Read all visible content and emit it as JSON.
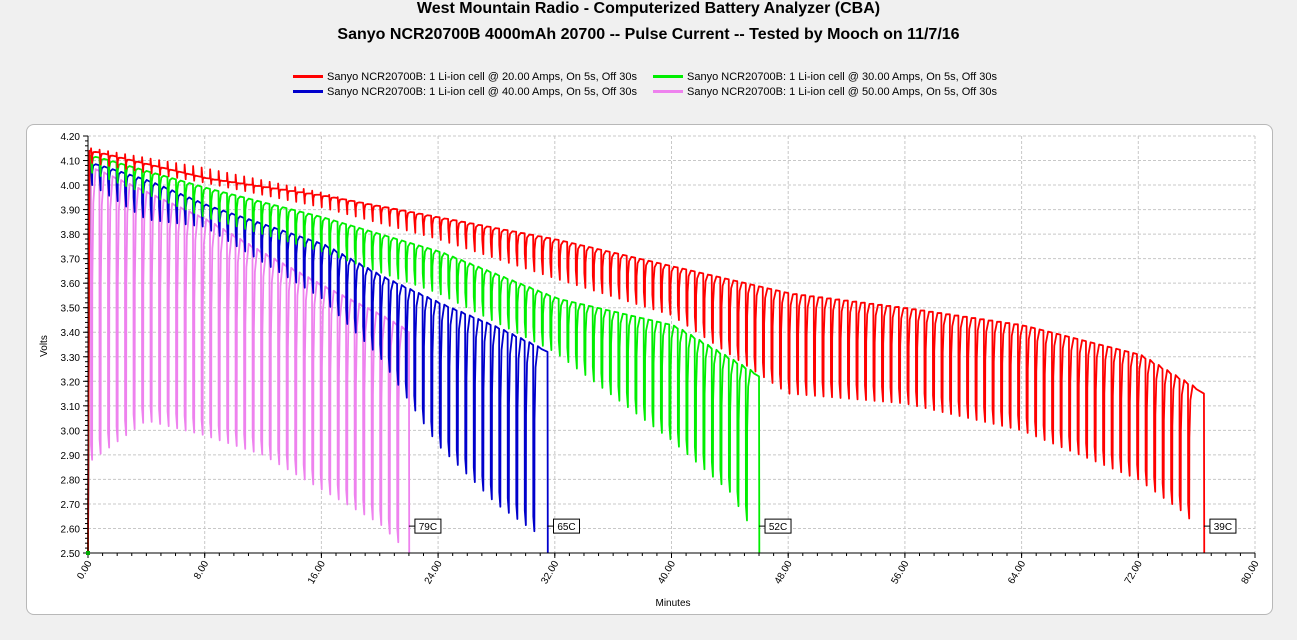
{
  "chart_data": {
    "type": "line",
    "title": "West Mountain Radio - Computerized Battery Analyzer (CBA)",
    "subtitle": "Sanyo NCR20700B 4000mAh 20700 -- Pulse Current -- Tested by Mooch on 11/7/16",
    "xlabel": "Minutes",
    "ylabel": "Volts",
    "xlim": [
      0,
      80
    ],
    "ylim": [
      2.5,
      4.2
    ],
    "x_ticks": [
      "0.00",
      "8.00",
      "16.00",
      "24.00",
      "32.00",
      "40.00",
      "48.00",
      "56.00",
      "64.00",
      "72.00",
      "80.00"
    ],
    "y_ticks": [
      "2.50",
      "2.60",
      "2.70",
      "2.80",
      "2.90",
      "3.00",
      "3.10",
      "3.20",
      "3.30",
      "3.40",
      "3.50",
      "3.60",
      "3.70",
      "3.80",
      "3.90",
      "4.00",
      "4.10",
      "4.20"
    ],
    "grid": true,
    "legend_position": "top",
    "series": [
      {
        "name": "Sanyo NCR20700B: 1 Li-ion cell @ 20.00 Amps, On 5s, Off 30s",
        "color": "#ff0000",
        "end_label": "39C",
        "pulse_period_min": 0.583,
        "rest_envelope": [
          [
            0.3,
            4.14
          ],
          [
            8,
            4.03
          ],
          [
            16,
            3.96
          ],
          [
            24,
            3.87
          ],
          [
            32,
            3.78
          ],
          [
            40,
            3.67
          ],
          [
            48,
            3.56
          ],
          [
            56,
            3.5
          ],
          [
            64,
            3.43
          ],
          [
            72,
            3.31
          ],
          [
            76.5,
            3.15
          ]
        ],
        "load_envelope": [
          [
            0.3,
            4.09
          ],
          [
            8,
            4.01
          ],
          [
            16,
            3.91
          ],
          [
            24,
            3.78
          ],
          [
            32,
            3.62
          ],
          [
            40,
            3.47
          ],
          [
            48,
            3.15
          ],
          [
            56,
            3.11
          ],
          [
            64,
            3.0
          ],
          [
            72,
            2.8
          ],
          [
            75,
            2.67
          ],
          [
            76.5,
            2.58
          ]
        ],
        "end_x": 76.5
      },
      {
        "name": "Sanyo NCR20700B: 1 Li-ion cell @ 30.00 Amps, On 5s, Off 30s",
        "color": "#00ee00",
        "end_label": "52C",
        "pulse_period_min": 0.583,
        "rest_envelope": [
          [
            0.3,
            4.12
          ],
          [
            8,
            3.99
          ],
          [
            16,
            3.87
          ],
          [
            24,
            3.73
          ],
          [
            32,
            3.54
          ],
          [
            40,
            3.43
          ],
          [
            44,
            3.29
          ],
          [
            46,
            3.22
          ]
        ],
        "load_envelope": [
          [
            0.3,
            4.05
          ],
          [
            8,
            3.87
          ],
          [
            16,
            3.73
          ],
          [
            24,
            3.56
          ],
          [
            32,
            3.32
          ],
          [
            40,
            2.96
          ],
          [
            44,
            2.75
          ],
          [
            46,
            2.55
          ]
        ],
        "end_x": 46
      },
      {
        "name": "Sanyo NCR20700B: 1 Li-ion cell @ 40.00 Amps, On 5s, Off 30s",
        "color": "#0000cc",
        "end_label": "65C",
        "pulse_period_min": 0.583,
        "rest_envelope": [
          [
            0.3,
            4.09
          ],
          [
            4,
            4.02
          ],
          [
            8,
            3.92
          ],
          [
            16,
            3.76
          ],
          [
            20,
            3.63
          ],
          [
            24,
            3.52
          ],
          [
            28,
            3.42
          ],
          [
            31.5,
            3.32
          ]
        ],
        "load_envelope": [
          [
            0.3,
            4.0
          ],
          [
            4,
            3.86
          ],
          [
            8,
            3.83
          ],
          [
            16,
            3.54
          ],
          [
            20,
            3.3
          ],
          [
            24,
            2.94
          ],
          [
            28,
            2.7
          ],
          [
            31.5,
            2.55
          ]
        ],
        "end_x": 31.5
      },
      {
        "name": "Sanyo NCR20700B: 1 Li-ion cell @ 50.00 Amps, On 5s, Off 30s",
        "color": "#ee82ee",
        "end_label": "79C",
        "pulse_period_min": 0.583,
        "rest_envelope": [
          [
            0.3,
            4.07
          ],
          [
            4,
            3.97
          ],
          [
            8,
            3.86
          ],
          [
            12,
            3.72
          ],
          [
            16,
            3.59
          ],
          [
            20,
            3.47
          ],
          [
            22,
            3.4
          ]
        ],
        "load_envelope": [
          [
            0.3,
            2.88
          ],
          [
            4,
            3.04
          ],
          [
            8,
            2.98
          ],
          [
            12,
            2.9
          ],
          [
            16,
            2.76
          ],
          [
            20,
            2.62
          ],
          [
            22,
            2.5
          ]
        ],
        "end_x": 22
      }
    ]
  },
  "legend": {
    "items": [
      "Sanyo NCR20700B: 1 Li-ion cell @ 20.00 Amps, On 5s, Off 30s",
      "Sanyo NCR20700B: 1 Li-ion cell @ 30.00 Amps, On 5s, Off 30s",
      "Sanyo NCR20700B: 1 Li-ion cell @ 40.00 Amps, On 5s, Off 30s",
      "Sanyo NCR20700B: 1 Li-ion cell @ 50.00 Amps, On 5s, Off 30s"
    ],
    "colors": [
      "#ff0000",
      "#00ee00",
      "#0000cc",
      "#ee82ee"
    ]
  }
}
